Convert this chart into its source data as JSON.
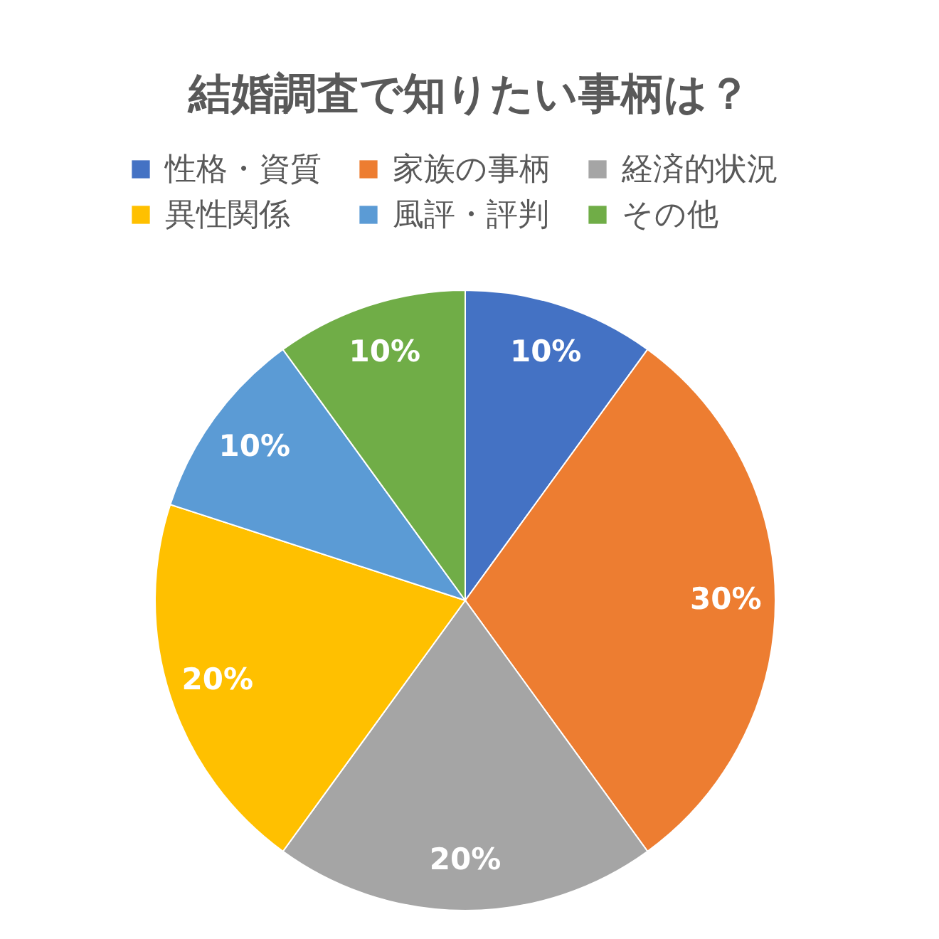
{
  "chart_data": {
    "type": "pie",
    "title": "結婚調査で知りたい事柄は？",
    "categories": [
      "性格・資質",
      "家族の事柄",
      "経済的状況",
      "異性関係",
      "風評・評判",
      "その他"
    ],
    "values": [
      10,
      30,
      20,
      20,
      10,
      10
    ],
    "colors": [
      "#4472c4",
      "#ed7d31",
      "#a5a5a5",
      "#ffc000",
      "#5b9bd5",
      "#70ad47"
    ],
    "value_labels": [
      "10%",
      "30%",
      "20%",
      "20%",
      "10%",
      "10%"
    ],
    "legend": "top"
  }
}
